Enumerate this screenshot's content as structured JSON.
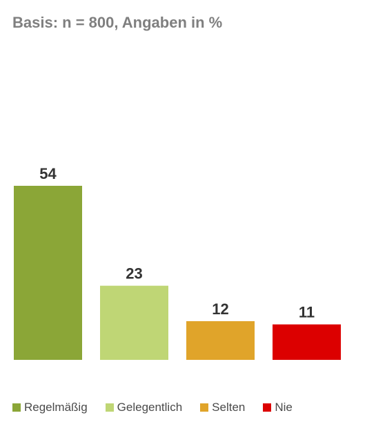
{
  "chart_data": {
    "type": "bar",
    "subtitle": "Basis: n = 800, Angaben in %",
    "categories": [
      "Regelmäßig",
      "Gelegentlich",
      "Selten",
      "Nie"
    ],
    "values": [
      54,
      23,
      12,
      11
    ],
    "data_labels": [
      "54",
      "23",
      "12",
      "11"
    ],
    "colors": [
      "#8ba637",
      "#bfd675",
      "#e0a42a",
      "#dc0000"
    ],
    "ylim": [
      0,
      60
    ],
    "grid": false,
    "legend_placement": "bottom-left"
  }
}
